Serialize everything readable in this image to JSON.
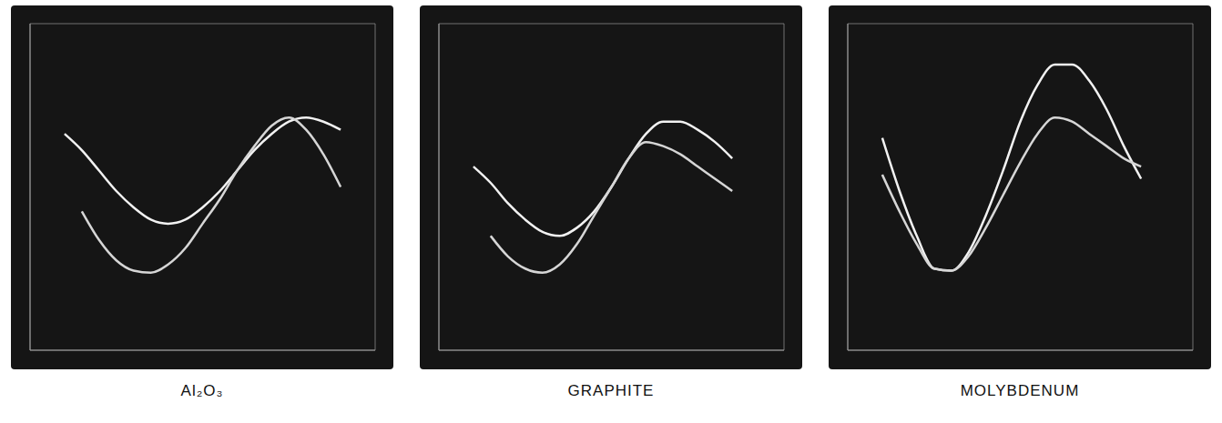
{
  "chart_data": [
    {
      "type": "line",
      "title": "Al₂O₃",
      "x": [
        1.0,
        1.5,
        2.0,
        2.5,
        3.0,
        3.5,
        4.0,
        4.5,
        5.0,
        5.5,
        6.0,
        6.5,
        7.0,
        7.5,
        8.0,
        8.5,
        9.0
      ],
      "series": [
        {
          "color": "#f2f2f2",
          "values": [
            5.3,
            4.9,
            4.4,
            3.9,
            3.5,
            3.2,
            3.1,
            3.2,
            3.5,
            3.9,
            4.4,
            4.9,
            5.3,
            5.6,
            5.7,
            5.6,
            5.4
          ]
        },
        {
          "color": "#d6d6d6",
          "values": [
            null,
            3.4,
            2.7,
            2.2,
            1.95,
            1.9,
            2.1,
            2.5,
            3.1,
            3.7,
            4.4,
            5.0,
            5.5,
            5.7,
            5.4,
            4.8,
            4.0
          ]
        }
      ],
      "xlim": [
        0,
        10
      ],
      "ylim": [
        0,
        8
      ],
      "xticks": [
        0,
        1,
        2,
        3,
        4,
        5,
        6,
        7,
        8,
        9,
        10
      ],
      "yticks": [
        0,
        1,
        2,
        3,
        4,
        5,
        6,
        7,
        8
      ],
      "grid": true,
      "tick_labels": false
    },
    {
      "type": "line",
      "title": "GRAPHITE",
      "x": [
        1.0,
        1.5,
        2.0,
        2.5,
        3.0,
        3.5,
        4.0,
        4.5,
        5.0,
        5.5,
        6.0,
        6.5,
        7.0,
        7.5,
        8.0,
        8.5
      ],
      "series": [
        {
          "color": "#f2f2f2",
          "values": [
            4.5,
            4.1,
            3.6,
            3.2,
            2.9,
            2.8,
            3.0,
            3.4,
            4.0,
            4.7,
            5.3,
            5.6,
            5.6,
            5.4,
            5.1,
            4.7
          ]
        },
        {
          "color": "#d6d6d6",
          "values": [
            null,
            2.8,
            2.3,
            2.0,
            1.9,
            2.1,
            2.6,
            3.3,
            4.0,
            4.7,
            5.1,
            5.0,
            4.8,
            4.5,
            4.2,
            3.9
          ]
        }
      ],
      "xlim": [
        0,
        10
      ],
      "ylim": [
        0,
        8
      ],
      "xticks": [
        0,
        1,
        2,
        3,
        4,
        5,
        6,
        7,
        8,
        9,
        10
      ],
      "yticks": [
        0,
        1,
        2,
        3,
        4,
        5,
        6,
        7,
        8
      ],
      "grid": true,
      "tick_labels": false
    },
    {
      "type": "line",
      "title": "MOLYBDENUM",
      "x": [
        1.0,
        1.5,
        2.0,
        2.5,
        3.0,
        3.5,
        4.0,
        4.5,
        5.0,
        5.5,
        6.0,
        6.5,
        7.0,
        7.5,
        8.0,
        8.5
      ],
      "series": [
        {
          "color": "#f2f2f2",
          "values": [
            5.2,
            3.9,
            2.8,
            2.0,
            1.95,
            2.4,
            3.3,
            4.4,
            5.6,
            6.5,
            7.0,
            7.0,
            6.6,
            5.9,
            5.0,
            4.2
          ]
        },
        {
          "color": "#d6d6d6",
          "values": [
            4.3,
            3.4,
            2.6,
            2.0,
            1.95,
            2.3,
            3.0,
            3.8,
            4.6,
            5.3,
            5.7,
            5.6,
            5.3,
            5.0,
            4.7,
            4.5
          ]
        }
      ],
      "xlim": [
        0,
        10
      ],
      "ylim": [
        0,
        8
      ],
      "xticks": [
        0,
        1,
        2,
        3,
        4,
        5,
        6,
        7,
        8,
        9,
        10
      ],
      "yticks": [
        0,
        1,
        2,
        3,
        4,
        5,
        6,
        7,
        8
      ],
      "grid": true,
      "tick_labels": false
    }
  ]
}
